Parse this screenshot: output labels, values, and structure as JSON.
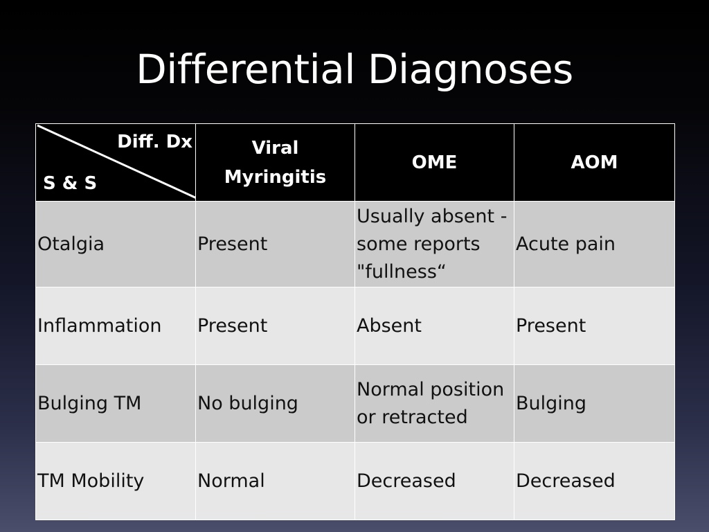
{
  "slide": {
    "title": "Differential Diagnoses"
  },
  "table": {
    "corner": {
      "top_label": "Diff. Dx",
      "bottom_label": "S & S"
    },
    "headers": [
      "Viral Myringitis",
      "OME",
      "AOM"
    ],
    "rows": [
      {
        "sign": "Otalgia",
        "cells": [
          "Present",
          "Usually absent - some reports \"fullness“",
          "Acute pain"
        ]
      },
      {
        "sign": "Inflammation",
        "cells": [
          "Present",
          "Absent",
          "Present"
        ]
      },
      {
        "sign": "Bulging TM",
        "cells": [
          "No bulging",
          "Normal position or retracted",
          "Bulging"
        ]
      },
      {
        "sign": "TM Mobility",
        "cells": [
          "Normal",
          "Decreased",
          "Decreased"
        ]
      }
    ]
  },
  "colors": {
    "header_bg": "#000000",
    "row_dark": "#cbcbcb",
    "row_light": "#e7e7e7",
    "text_dark": "#111111",
    "text_light": "#ffffff"
  }
}
